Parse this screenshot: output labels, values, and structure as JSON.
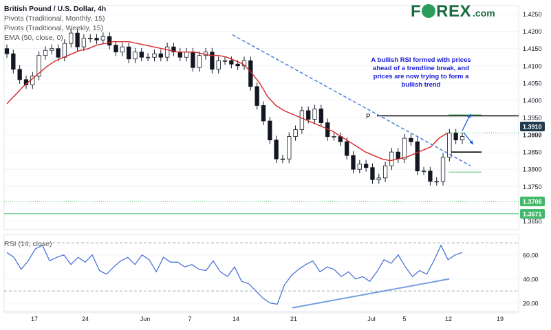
{
  "legend": {
    "title": "British Pound / U.S. Dollar, 4h",
    "lines": [
      "Pivots (Traditional, Monthly, 15)",
      "Pivots (Traditional, Weekly, 15)",
      "EMA (50, close, 0)"
    ]
  },
  "logo": {
    "text_left": "F",
    "text_right": "REX",
    "suffix": ".com"
  },
  "annotation": "A bullish RSI formed with prices ahead of a trendline break, and prices are now trying to form a bullish trend",
  "pivot_label": "P",
  "rsi_label": "RSI (14, close)",
  "colors": {
    "candle_up": "#131722",
    "candle_down": "#131722",
    "ema": "#d62728",
    "trendline": "#4a7fd6",
    "pivot_black": "#000000",
    "pivot_green": "#43b96b",
    "arrow": "#1a56d6",
    "rsi": "#4a74d6",
    "annotation": "#1a1ad8"
  },
  "chart_data": [
    {
      "type": "line",
      "title": "British Pound / U.S. Dollar, 4h",
      "x_tick_labels": [
        "17",
        "24",
        "Jun",
        "7",
        "14",
        "21",
        "Jul",
        "5",
        "12",
        "19"
      ],
      "y_ticks": [
        1.365,
        1.37,
        1.375,
        1.38,
        1.385,
        1.39,
        1.395,
        1.4,
        1.405,
        1.41,
        1.415,
        1.42,
        1.425
      ],
      "ylim": [
        1.3625,
        1.4275
      ],
      "price_labels": [
        {
          "value": "1.3910",
          "style": "dark"
        },
        {
          "value": "1.3897",
          "style": "plain"
        },
        {
          "value": "1.3706",
          "style": "green"
        },
        {
          "value": "1.3671",
          "style": "green"
        }
      ],
      "series": [
        {
          "values": [
            1.4135,
            1.409,
            1.406,
            1.4045,
            1.407,
            1.413,
            1.4145,
            1.415,
            1.4125,
            1.4165,
            1.4195,
            1.4155,
            1.418,
            1.418,
            1.4175,
            1.4185,
            1.416,
            1.414,
            1.4155,
            1.412,
            1.414,
            1.4125,
            1.4125,
            1.4135,
            1.4125,
            1.4155,
            1.414,
            1.4125,
            1.414,
            1.4095,
            1.413,
            1.414,
            1.409,
            1.4115,
            1.4115,
            1.4105,
            1.41,
            1.4115,
            1.404,
            1.3985,
            1.394,
            1.3885,
            1.383,
            1.383,
            1.3895,
            1.3915,
            1.397,
            1.3945,
            1.3975,
            1.3935,
            1.3895,
            1.3895,
            1.388,
            1.384,
            1.38,
            1.3815,
            1.3805,
            1.377,
            1.3775,
            1.381,
            1.385,
            1.383,
            1.389,
            1.388,
            1.3795,
            1.3795,
            1.3765,
            1.3765,
            1.3835,
            1.3905,
            1.3885,
            1.3895
          ]
        },
        {
          "name": "EMA (50, close, 0)",
          "values": [
            1.399,
            1.4015,
            1.404,
            1.406,
            1.408,
            1.41,
            1.4115,
            1.4125,
            1.4135,
            1.4145,
            1.415,
            1.416,
            1.4165,
            1.417,
            1.417,
            1.417,
            1.4165,
            1.416,
            1.4155,
            1.415,
            1.4145,
            1.414,
            1.414,
            1.414,
            1.4135,
            1.413,
            1.413,
            1.4125,
            1.4115,
            1.4105,
            1.408,
            1.405,
            1.401,
            1.3985,
            1.397,
            1.396,
            1.395,
            1.394,
            1.393,
            1.392,
            1.391,
            1.3895,
            1.388,
            1.3865,
            1.385,
            1.384,
            1.383,
            1.3825,
            1.383,
            1.3835,
            1.3845,
            1.3855,
            1.3865,
            1.389,
            1.3905
          ]
        }
      ],
      "pivot_levels": [
        {
          "label": "P",
          "value": 1.3955,
          "color": "black"
        },
        {
          "value": 1.3958,
          "color": "green"
        },
        {
          "value": 1.3906,
          "color": "green"
        },
        {
          "value": 1.385,
          "color": "black"
        },
        {
          "value": 1.3792,
          "color": "green"
        },
        {
          "value": 1.3706,
          "color": "green"
        },
        {
          "value": 1.3671,
          "color": "green"
        }
      ],
      "trendline": {
        "from": 1.419,
        "to": 1.381
      }
    },
    {
      "type": "line",
      "title": "RSI (14, close)",
      "y_ticks": [
        20,
        40,
        60
      ],
      "ylim": [
        13,
        77
      ],
      "reference_lines": [
        70,
        30
      ],
      "series": [
        {
          "values": [
            62,
            58,
            48,
            55,
            65,
            68,
            55,
            58,
            60,
            52,
            58,
            54,
            60,
            47,
            44,
            50,
            55,
            58,
            52,
            60,
            56,
            46,
            58,
            54,
            54,
            50,
            52,
            48,
            47,
            55,
            46,
            42,
            50,
            38,
            36,
            30,
            24,
            20,
            19,
            35,
            43,
            48,
            52,
            55,
            46,
            50,
            48,
            42,
            46,
            40,
            42,
            38,
            46,
            56,
            53,
            60,
            50,
            42,
            47,
            44,
            55,
            68,
            56,
            60,
            62
          ]
        }
      ],
      "support_line": {
        "from": 16,
        "to": 40
      }
    }
  ]
}
